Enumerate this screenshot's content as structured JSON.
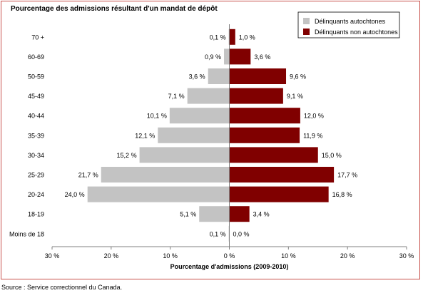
{
  "chart_data": {
    "type": "bar",
    "orientation": "horizontal",
    "layout": "population-pyramid",
    "title": "Pourcentage des admissions résultant d'un mandat de dépôt",
    "xlabel": "Pourcentage d'admissions (2009-2010)",
    "ylabel": "",
    "xlim": [
      -30,
      30
    ],
    "x_ticks": [
      "30 %",
      "20 %",
      "10 %",
      "0 %",
      "10 %",
      "20 %",
      "30 %"
    ],
    "x_tick_values": [
      -30,
      -20,
      -10,
      0,
      10,
      20,
      30
    ],
    "grid": false,
    "legend_position": "top-right",
    "categories": [
      "70 +",
      "60-69",
      "50-59",
      "45-49",
      "40-44",
      "35-39",
      "30-34",
      "25-29",
      "20-24",
      "18-19",
      "Moins de 18"
    ],
    "series": [
      {
        "name": "Délinquants autochtones",
        "color": "#c3c3c3",
        "side": "left",
        "values": [
          0.1,
          0.9,
          3.6,
          7.1,
          10.1,
          12.1,
          15.2,
          21.7,
          24.0,
          5.1,
          0.1
        ],
        "labels": [
          "0,1 %",
          "0,9 %",
          "3,6 %",
          "7,1 %",
          "10,1 %",
          "12,1 %",
          "15,2 %",
          "21,7 %",
          "24,0 %",
          "5,1 %",
          "0,1 %"
        ]
      },
      {
        "name": "Délinquants non autochtones",
        "color": "#800000",
        "side": "right",
        "values": [
          1.0,
          3.6,
          9.6,
          9.1,
          12.0,
          11.9,
          15.0,
          17.7,
          16.8,
          3.4,
          0.0
        ],
        "labels": [
          "1,0 %",
          "3,6 %",
          "9,6 %",
          "9,1 %",
          "12,0 %",
          "11,9 %",
          "15,0 %",
          "17,7 %",
          "16,8 %",
          "3,4 %",
          "0,0 %"
        ]
      }
    ]
  },
  "source": "Source : Service correctionnel du Canada."
}
